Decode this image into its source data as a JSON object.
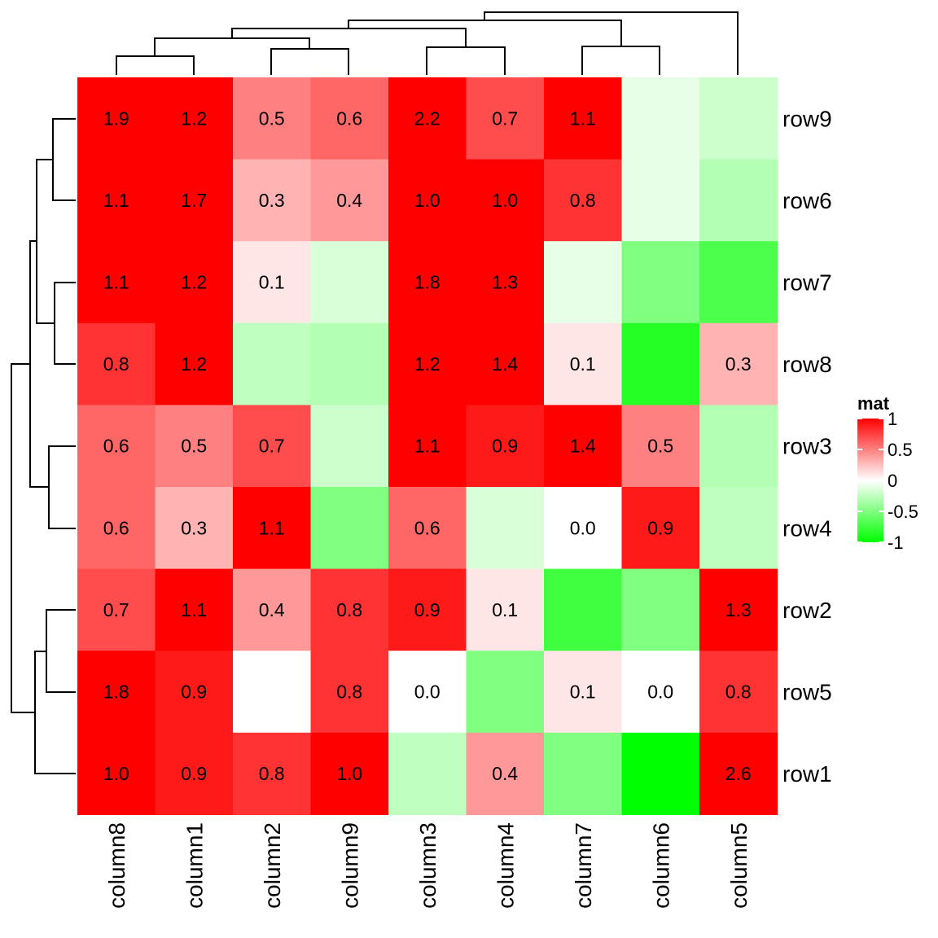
{
  "chart_data": {
    "type": "heatmap",
    "rows": [
      "row9",
      "row6",
      "row7",
      "row8",
      "row3",
      "row4",
      "row2",
      "row5",
      "row1"
    ],
    "columns": [
      "column8",
      "column1",
      "column2",
      "column9",
      "column3",
      "column4",
      "column7",
      "column6",
      "column5"
    ],
    "values": [
      [
        1.9,
        1.2,
        0.5,
        0.6,
        2.2,
        0.7,
        1.1,
        -0.1,
        -0.2
      ],
      [
        1.1,
        1.7,
        0.3,
        0.4,
        1.0,
        1.0,
        0.8,
        -0.1,
        -0.3
      ],
      [
        1.1,
        1.2,
        0.1,
        -0.15,
        1.8,
        1.3,
        -0.1,
        -0.5,
        -0.7
      ],
      [
        0.8,
        1.2,
        -0.25,
        -0.3,
        1.2,
        1.4,
        0.1,
        -0.85,
        0.3
      ],
      [
        0.6,
        0.5,
        0.7,
        -0.2,
        1.1,
        0.9,
        1.4,
        0.5,
        -0.3
      ],
      [
        0.6,
        0.3,
        1.1,
        -0.5,
        0.6,
        -0.15,
        0.0,
        0.9,
        -0.25
      ],
      [
        0.7,
        1.1,
        0.4,
        0.8,
        0.9,
        0.1,
        -0.75,
        -0.5,
        1.3
      ],
      [
        1.8,
        0.9,
        0.0,
        0.8,
        0.0,
        -0.5,
        0.1,
        0.0,
        0.8
      ],
      [
        1.0,
        0.9,
        0.8,
        1.0,
        -0.25,
        0.4,
        -0.5,
        -1.0,
        2.6
      ]
    ],
    "labels": [
      [
        "1.9",
        "1.2",
        "0.5",
        "0.6",
        "2.2",
        "0.7",
        "1.1",
        "",
        ""
      ],
      [
        "1.1",
        "1.7",
        "0.3",
        "0.4",
        "1.0",
        "1.0",
        "0.8",
        "",
        ""
      ],
      [
        "1.1",
        "1.2",
        "0.1",
        "",
        "1.8",
        "1.3",
        "",
        "",
        ""
      ],
      [
        "0.8",
        "1.2",
        "",
        "",
        "1.2",
        "1.4",
        "0.1",
        "",
        "0.3"
      ],
      [
        "0.6",
        "0.5",
        "0.7",
        "",
        "1.1",
        "0.9",
        "1.4",
        "0.5",
        ""
      ],
      [
        "0.6",
        "0.3",
        "1.1",
        "",
        "0.6",
        "",
        "0.0",
        "0.9",
        ""
      ],
      [
        "0.7",
        "1.1",
        "0.4",
        "0.8",
        "0.9",
        "0.1",
        "",
        "",
        "1.3"
      ],
      [
        "1.8",
        "0.9",
        "",
        "0.8",
        "0.0",
        "",
        "0.1",
        "0.0",
        "0.8"
      ],
      [
        "1.0",
        "0.9",
        "0.8",
        "1.0",
        "",
        "0.4",
        "",
        "",
        "2.6"
      ]
    ],
    "color_scale": {
      "low": "#00ff00",
      "mid": "#ffffff",
      "high": "#ff0000",
      "range": [
        -1,
        1
      ]
    },
    "legend": {
      "title": "mat",
      "ticks": [
        {
          "value": 1,
          "label": "1"
        },
        {
          "value": 0.5,
          "label": "0.5"
        },
        {
          "value": 0,
          "label": "0"
        },
        {
          "value": -0.5,
          "label": "-0.5"
        },
        {
          "value": -1,
          "label": "-1"
        }
      ],
      "placement": "right"
    }
  }
}
